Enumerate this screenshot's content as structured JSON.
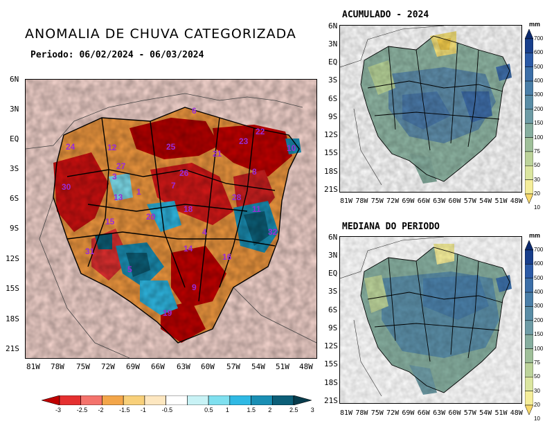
{
  "main": {
    "title": "ANOMALIA DE CHUVA CATEGORIZADA",
    "period": "Periodo: 06/02/2024 - 06/03/2024",
    "lat_labels": [
      "6N",
      "3N",
      "EQ",
      "3S",
      "6S",
      "9S",
      "12S",
      "15S",
      "18S",
      "21S"
    ],
    "lon_labels": [
      "81W",
      "78W",
      "75W",
      "72W",
      "69W",
      "66W",
      "63W",
      "60W",
      "57W",
      "54W",
      "51W",
      "48W"
    ],
    "basin_numbers": [
      "6",
      "22",
      "23",
      "10",
      "12",
      "25",
      "21",
      "24",
      "30",
      "3",
      "27",
      "26",
      "8",
      "7",
      "1",
      "13",
      "28",
      "11",
      "18",
      "20",
      "15",
      "4",
      "32",
      "31",
      "14",
      "16",
      "5",
      "9",
      "19"
    ],
    "colorbar_labels": [
      "-3",
      "-2.5",
      "-2",
      "-1.5",
      "-1",
      "-0.5",
      "0.5",
      "1",
      "1.5",
      "2",
      "2.5",
      "3"
    ],
    "colorbar_colors": [
      "#c00000",
      "#e53030",
      "#f4736c",
      "#f3a64a",
      "#f8d07a",
      "#fde7c0",
      "#ffffff",
      "#c8f2f5",
      "#7fe0ef",
      "#2fb9e4",
      "#1a8fb4",
      "#0c5f78",
      "#083c4c"
    ]
  },
  "acumulado": {
    "title": "ACUMULADO - 2024",
    "lat_labels": [
      "6N",
      "3N",
      "EQ",
      "3S",
      "6S",
      "9S",
      "12S",
      "15S",
      "18S",
      "21S"
    ],
    "lon_labels": [
      "81W",
      "78W",
      "75W",
      "72W",
      "69W",
      "66W",
      "63W",
      "60W",
      "57W",
      "54W",
      "51W",
      "48W"
    ]
  },
  "mediana": {
    "title": "MEDIANA DO PERIODO",
    "lat_labels": [
      "6N",
      "3N",
      "EQ",
      "3S",
      "6S",
      "9S",
      "12S",
      "15S",
      "18S",
      "21S"
    ],
    "lon_labels": [
      "81W",
      "78W",
      "75W",
      "72W",
      "69W",
      "66W",
      "63W",
      "60W",
      "57W",
      "54W",
      "51W",
      "48W"
    ]
  },
  "scale": {
    "unit": "mm",
    "labels": [
      "700",
      "600",
      "500",
      "400",
      "300",
      "200",
      "150",
      "100",
      "75",
      "50",
      "30",
      "20",
      "10"
    ],
    "colors": [
      "#0c2a6e",
      "#183f8c",
      "#2b5aa6",
      "#3c6fa8",
      "#4a7fa8",
      "#5a8da6",
      "#6e9ca6",
      "#86ae9f",
      "#9fc09a",
      "#bcd39a",
      "#dbe6a0",
      "#f5ee9a",
      "#f7d96a"
    ]
  }
}
